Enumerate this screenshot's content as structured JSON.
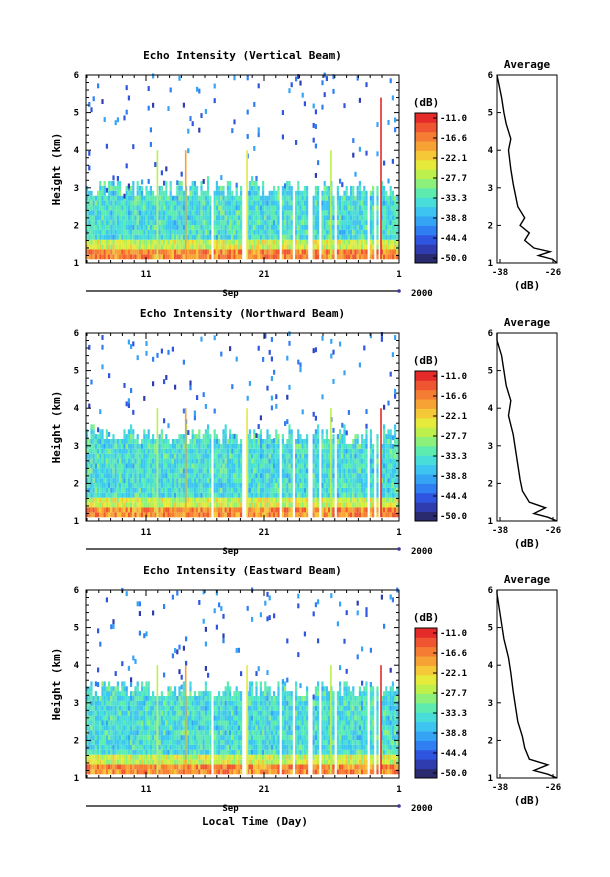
{
  "figure": {
    "xlabel": "Local Time (Day)",
    "year_label": "2000",
    "month_label": "Sep"
  },
  "colorbar": {
    "unit": "(dB)",
    "tick_labels": [
      "-11.0",
      "-16.6",
      "-22.1",
      "-27.7",
      "-33.3",
      "-38.8",
      "-44.4",
      "-50.0"
    ],
    "colors": [
      "#2a2a6e",
      "#2e3cb0",
      "#2f55e0",
      "#2f7ef2",
      "#35a4f5",
      "#3ec4f0",
      "#48ddd8",
      "#5eebb0",
      "#8cf07a",
      "#bdf04c",
      "#e6ea3a",
      "#f5c838",
      "#f7a235",
      "#f47c33",
      "#ef5530",
      "#e52b2a"
    ]
  },
  "chart_data": [
    {
      "type": "heatmap",
      "title": "Echo Intensity (Vertical Beam)",
      "ylabel": "Height (km)",
      "ylim": [
        1,
        6
      ],
      "yticks": [
        "1",
        "2",
        "3",
        "4",
        "5",
        "6"
      ],
      "xticks": [
        "11",
        "21",
        "1"
      ],
      "colorbar_range": [
        -50.0,
        -11.0
      ],
      "average": {
        "title": "Average",
        "xlabel": "(dB)",
        "xlim": [
          -38,
          -25
        ],
        "xticks": [
          "-38",
          "-26"
        ],
        "profile": [
          [
            -25.0,
            1.0
          ],
          [
            -26.0,
            1.1
          ],
          [
            -29.0,
            1.2
          ],
          [
            -26.5,
            1.3
          ],
          [
            -30.0,
            1.4
          ],
          [
            -32.0,
            1.6
          ],
          [
            -31.0,
            1.8
          ],
          [
            -33.0,
            2.0
          ],
          [
            -32.0,
            2.2
          ],
          [
            -33.5,
            2.5
          ],
          [
            -34.0,
            2.8
          ],
          [
            -34.5,
            3.1
          ],
          [
            -35.0,
            3.5
          ],
          [
            -35.5,
            4.0
          ],
          [
            -35.0,
            4.3
          ],
          [
            -36.0,
            4.7
          ],
          [
            -36.5,
            5.0
          ],
          [
            -37.0,
            5.4
          ],
          [
            -37.5,
            5.7
          ],
          [
            -38.0,
            6.0
          ]
        ]
      }
    },
    {
      "type": "heatmap",
      "title": "Echo Intensity (Northward Beam)",
      "ylabel": "Height (km)",
      "ylim": [
        1,
        6
      ],
      "yticks": [
        "1",
        "2",
        "3",
        "4",
        "5",
        "6"
      ],
      "xticks": [
        "11",
        "21",
        "1"
      ],
      "colorbar_range": [
        -50.0,
        -11.0
      ],
      "average": {
        "title": "Average",
        "xlabel": "(dB)",
        "xlim": [
          -38,
          -25
        ],
        "xticks": [
          "-38",
          "-26"
        ],
        "profile": [
          [
            -25.0,
            1.0
          ],
          [
            -27.0,
            1.1
          ],
          [
            -30.0,
            1.2
          ],
          [
            -27.5,
            1.35
          ],
          [
            -31.0,
            1.5
          ],
          [
            -32.5,
            1.8
          ],
          [
            -33.0,
            2.1
          ],
          [
            -33.5,
            2.5
          ],
          [
            -34.0,
            2.9
          ],
          [
            -34.5,
            3.3
          ],
          [
            -35.5,
            3.8
          ],
          [
            -35.0,
            4.2
          ],
          [
            -36.0,
            4.6
          ],
          [
            -36.5,
            5.0
          ],
          [
            -37.0,
            5.4
          ],
          [
            -38.0,
            5.8
          ],
          [
            -38.0,
            6.0
          ]
        ]
      }
    },
    {
      "type": "heatmap",
      "title": "Echo Intensity (Eastward Beam)",
      "ylabel": "Height (km)",
      "ylim": [
        1,
        6
      ],
      "yticks": [
        "1",
        "2",
        "3",
        "4",
        "5",
        "6"
      ],
      "xticks": [
        "11",
        "21",
        "1"
      ],
      "colorbar_range": [
        -50.0,
        -11.0
      ],
      "average": {
        "title": "Average",
        "xlabel": "(dB)",
        "xlim": [
          -38,
          -25
        ],
        "xticks": [
          "-38",
          "-26"
        ],
        "profile": [
          [
            -25.0,
            1.0
          ],
          [
            -27.0,
            1.1
          ],
          [
            -30.0,
            1.2
          ],
          [
            -27.0,
            1.35
          ],
          [
            -31.0,
            1.5
          ],
          [
            -32.0,
            1.8
          ],
          [
            -32.5,
            2.1
          ],
          [
            -33.5,
            2.5
          ],
          [
            -34.0,
            2.9
          ],
          [
            -34.5,
            3.3
          ],
          [
            -35.0,
            3.8
          ],
          [
            -35.5,
            4.2
          ],
          [
            -36.5,
            4.7
          ],
          [
            -37.0,
            5.1
          ],
          [
            -37.5,
            5.5
          ],
          [
            -38.0,
            5.9
          ],
          [
            -38.0,
            6.0
          ]
        ]
      }
    }
  ]
}
